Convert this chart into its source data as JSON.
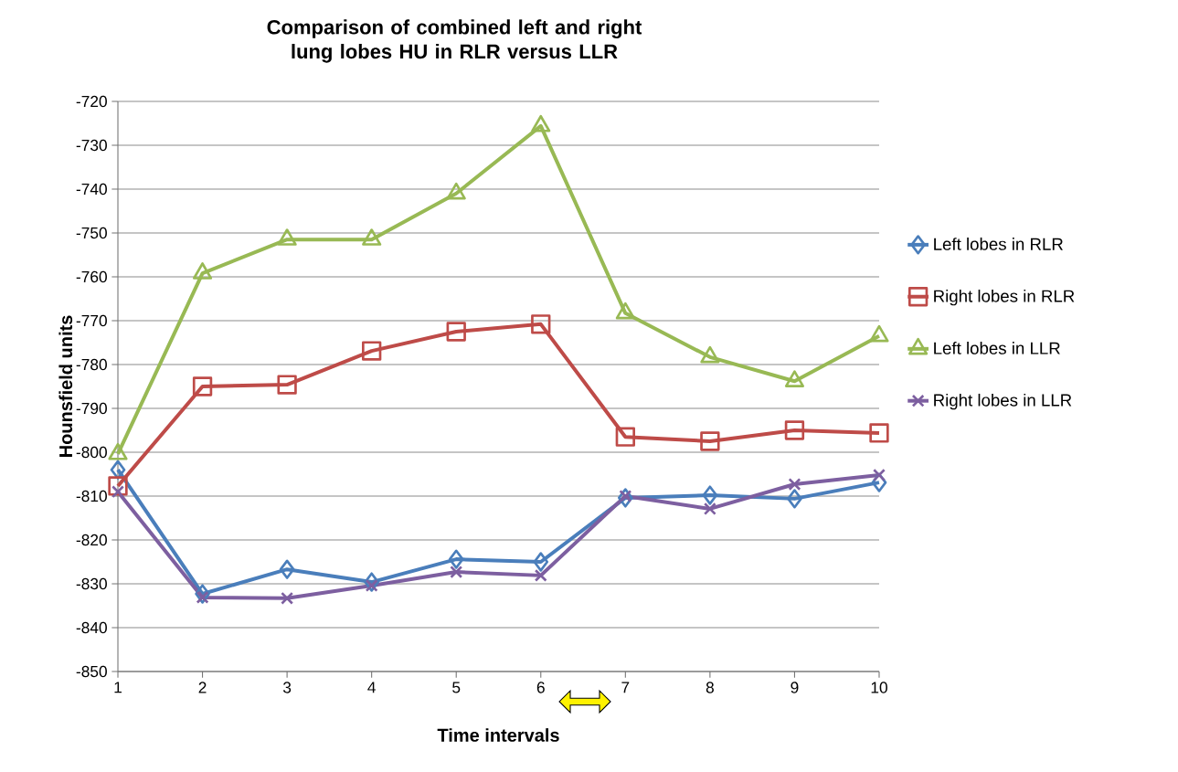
{
  "chart_data": {
    "type": "line",
    "title": "Comparison of combined left and right lung lobes HU in RLR versus LLR",
    "xlabel": "Time intervals",
    "ylabel": "Hounsfield units",
    "categories": [
      "1",
      "2",
      "3",
      "4",
      "5",
      "6",
      "7",
      "8",
      "9",
      "10"
    ],
    "series": [
      {
        "name": "Left lobes in RLR",
        "color": "#4a7ebb",
        "marker": "diamond",
        "values": [
          -804,
          -832.3,
          -826.7,
          -829.6,
          -824.4,
          -825,
          -810.4,
          -809.8,
          -810.6,
          -806.9
        ]
      },
      {
        "name": "Right lobes in RLR",
        "color": "#be4b48",
        "marker": "square",
        "values": [
          -807.7,
          -785,
          -784.6,
          -776.9,
          -772.5,
          -770.8,
          -796.5,
          -797.5,
          -795,
          -795.6
        ]
      },
      {
        "name": "Left lobes in LLR",
        "color": "#98b954",
        "marker": "triangle",
        "values": [
          -800.4,
          -759.2,
          -751.5,
          -751.5,
          -741,
          -725.6,
          -768.3,
          -778.3,
          -783.8,
          -773.5
        ]
      },
      {
        "name": "Right lobes in LLR",
        "color": "#7d5fa0",
        "marker": "cross",
        "values": [
          -809,
          -833.1,
          -833.3,
          -830.4,
          -827.3,
          -828.1,
          -810,
          -812.9,
          -807.3,
          -805.2
        ]
      }
    ],
    "ylim": [
      -850,
      -720
    ],
    "yticks": [
      -850,
      -840,
      -830,
      -820,
      -810,
      -800,
      -790,
      -780,
      -770,
      -760,
      -750,
      -740,
      -730,
      -720
    ],
    "grid": "y",
    "legend": "right",
    "line_style": "solid"
  }
}
